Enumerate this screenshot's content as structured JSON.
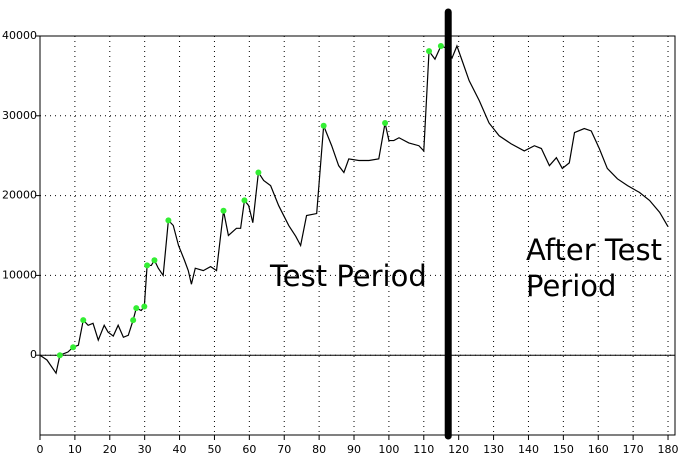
{
  "chart_data": {
    "type": "line",
    "x": [
      0,
      2,
      4.6,
      5.7,
      8,
      9.5,
      11,
      12.4,
      13.8,
      15.2,
      16.7,
      18.4,
      19.5,
      21,
      22.4,
      23.9,
      25.3,
      26.7,
      27.6,
      29,
      29.9,
      30.7,
      31.9,
      32.8,
      33.9,
      35.3,
      36.8,
      38.2,
      39.7,
      41.4,
      42.5,
      43.4,
      44.5,
      46.8,
      48.9,
      50.6,
      52.6,
      54,
      56.3,
      57.5,
      58.6,
      59.8,
      61,
      62.6,
      64.1,
      66.1,
      68.4,
      71.3,
      73.3,
      74.7,
      76.4,
      79.3,
      81.3,
      83.6,
      85.6,
      87.1,
      88.5,
      91.4,
      94.3,
      97.1,
      98.9,
      100,
      101.4,
      102.9,
      105.7,
      108.6,
      110,
      111.5,
      113.2,
      114.9,
      116.4,
      118.1,
      119.5,
      121,
      123,
      125.9,
      128.7,
      131.6,
      135,
      138.8,
      141.7,
      143.7,
      146,
      148,
      149.7,
      151.7,
      153.2,
      156,
      158,
      160.3,
      162.6,
      165.5,
      168.4,
      171.8,
      174.7,
      177.6,
      180
    ],
    "series": [
      {
        "color": "#000000",
        "values": [
          0,
          -600,
          -2250,
          0,
          400,
          1000,
          1250,
          4400,
          3750,
          4000,
          1900,
          3750,
          2900,
          2400,
          3750,
          2250,
          2500,
          4400,
          5900,
          5600,
          6100,
          11250,
          11250,
          11900,
          10900,
          10000,
          16900,
          16250,
          13750,
          11900,
          10600,
          8900,
          10900,
          10600,
          11100,
          10600,
          18100,
          15000,
          15900,
          15900,
          19400,
          18750,
          16600,
          22900,
          21900,
          21250,
          18750,
          16250,
          14900,
          13750,
          17500,
          17750,
          28750,
          26250,
          23750,
          22900,
          24600,
          24400,
          24400,
          24600,
          29100,
          26900,
          26900,
          27250,
          26600,
          26250,
          25600,
          38100,
          37100,
          38750,
          38500,
          37250,
          38750,
          36900,
          34400,
          31900,
          29100,
          27500,
          26500,
          25600,
          26250,
          25900,
          23750,
          24750,
          23400,
          24100,
          27900,
          28400,
          28100,
          25900,
          23400,
          22100,
          21250,
          20400,
          19400,
          17900,
          16100
        ]
      }
    ],
    "points": {
      "color": "#33ee33",
      "x": [
        5.7,
        9.5,
        12.4,
        26.7,
        27.6,
        29.9,
        30.7,
        32.8,
        36.8,
        52.6,
        58.6,
        62.6,
        81.3,
        98.9,
        111.5,
        114.9
      ],
      "values": [
        0,
        1000,
        4400,
        4400,
        5900,
        6100,
        11250,
        11900,
        16900,
        18100,
        19400,
        22900,
        28750,
        29100,
        38100,
        38750
      ]
    },
    "divider_x": 117,
    "annotations": [
      "Test Period",
      "After Test Period"
    ],
    "xlim": [
      0,
      182
    ],
    "xticks": [
      0,
      10,
      20,
      30,
      40,
      50,
      60,
      70,
      80,
      90,
      100,
      110,
      120,
      130,
      140,
      150,
      160,
      170,
      180
    ],
    "ylim": [
      -10000,
      40000
    ],
    "yticks": [
      0,
      10000,
      20000,
      30000,
      40000
    ],
    "grid": true
  }
}
